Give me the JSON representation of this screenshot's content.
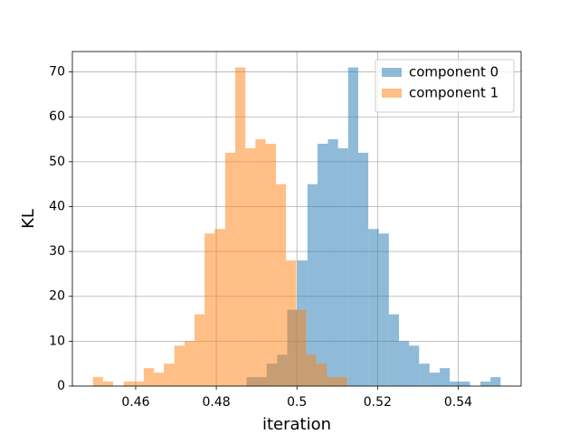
{
  "chart_data": {
    "type": "histogram",
    "xlabel": "iteration",
    "ylabel": "KL",
    "xlim": [
      0.4443,
      0.5556
    ],
    "ylim": [
      0,
      74.55
    ],
    "xticks": [
      0.46,
      0.48,
      0.5,
      0.52,
      0.54
    ],
    "yticks": [
      0,
      10,
      20,
      30,
      40,
      50,
      60,
      70
    ],
    "grid": true,
    "legend": "upper right",
    "alpha": 0.5,
    "series": [
      {
        "name": "component 0",
        "color": "#1f77b4",
        "bins": [
          0.4875,
          0.49,
          0.4925,
          0.4951,
          0.4976,
          0.5001,
          0.5026,
          0.5051,
          0.5077,
          0.5102,
          0.5127,
          0.5152,
          0.5177,
          0.5203,
          0.5228,
          0.5253,
          0.5278,
          0.5303,
          0.5329,
          0.5354,
          0.5379,
          0.5404,
          0.5429,
          0.5455,
          0.548,
          0.5505
        ],
        "values": [
          2,
          2,
          5,
          7,
          17,
          28,
          45,
          54,
          55,
          53,
          71,
          52,
          35,
          34,
          16,
          10,
          9,
          5,
          3,
          4,
          1,
          1,
          0,
          1,
          2
        ]
      },
      {
        "name": "component 1",
        "color": "#ff7f0e",
        "bins": [
          0.4494,
          0.4519,
          0.4544,
          0.457,
          0.4595,
          0.462,
          0.4645,
          0.467,
          0.4696,
          0.4721,
          0.4746,
          0.4771,
          0.4796,
          0.4822,
          0.4847,
          0.4872,
          0.4897,
          0.4922,
          0.4948,
          0.4973,
          0.4998,
          0.5023,
          0.5048,
          0.5074,
          0.5099,
          0.5124
        ],
        "values": [
          2,
          1,
          0,
          1,
          1,
          4,
          3,
          5,
          9,
          10,
          16,
          34,
          35,
          52,
          71,
          53,
          55,
          54,
          45,
          28,
          17,
          7,
          5,
          2,
          2
        ]
      }
    ]
  }
}
